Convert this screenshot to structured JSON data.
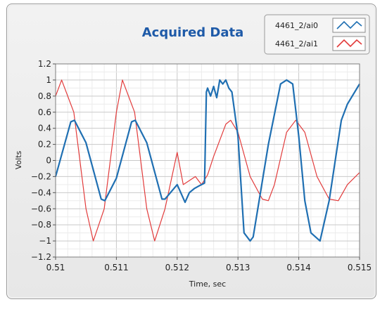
{
  "chart_data": {
    "type": "line",
    "title": "Acquired Data",
    "xlabel": "Time, sec",
    "ylabel": "Volts",
    "xlim": [
      0.51,
      0.515
    ],
    "ylim": [
      -1.2,
      1.2
    ],
    "x_ticks": [
      "0.51",
      "0.511",
      "0.512",
      "0.513",
      "0.514",
      "0.515"
    ],
    "y_ticks": [
      "1.2",
      "1",
      "0.8",
      "0.6",
      "0.4",
      "0.2",
      "0",
      "-0.2",
      "-0.4",
      "-0.6",
      "-0.8",
      "-1",
      "-1.2"
    ],
    "grid": true,
    "legend_position": "top-right",
    "series": [
      {
        "name": "4461_2/ai0",
        "color": "#1f6fb2",
        "x": [
          0.51,
          0.51025,
          0.51031,
          0.5105,
          0.51075,
          0.51081,
          0.511,
          0.51125,
          0.51131,
          0.5115,
          0.51175,
          0.5118,
          0.512,
          0.51213,
          0.5122,
          0.51228,
          0.51235,
          0.5124,
          0.51245,
          0.51248,
          0.5125,
          0.51255,
          0.5126,
          0.51265,
          0.5127,
          0.51275,
          0.5128,
          0.51285,
          0.5129,
          0.513,
          0.5131,
          0.5132,
          0.51325,
          0.5135,
          0.5137,
          0.5138,
          0.5139,
          0.514,
          0.5141,
          0.5142,
          0.51435,
          0.5145,
          0.5147,
          0.5148,
          0.515
        ],
        "y": [
          -0.2,
          0.48,
          0.5,
          0.22,
          -0.48,
          -0.5,
          -0.22,
          0.48,
          0.5,
          0.22,
          -0.48,
          -0.48,
          -0.3,
          -0.52,
          -0.4,
          -0.35,
          -0.32,
          -0.3,
          -0.28,
          0.85,
          0.9,
          0.8,
          0.92,
          0.78,
          1.0,
          0.95,
          1.0,
          0.9,
          0.85,
          0.3,
          -0.9,
          -1.0,
          -0.95,
          0.2,
          0.95,
          1.0,
          0.95,
          0.3,
          -0.5,
          -0.9,
          -1.0,
          -0.5,
          0.5,
          0.7,
          0.95
        ]
      },
      {
        "name": "4461_2/ai1",
        "color": "#e23b3b",
        "x": [
          0.51,
          0.5101,
          0.5103,
          0.5105,
          0.51062,
          0.5108,
          0.511,
          0.5111,
          0.5113,
          0.5115,
          0.51163,
          0.5118,
          0.512,
          0.5121,
          0.5122,
          0.5123,
          0.5124,
          0.5125,
          0.5126,
          0.5128,
          0.51288,
          0.513,
          0.5132,
          0.5134,
          0.5135,
          0.5136,
          0.5138,
          0.51395,
          0.5141,
          0.5143,
          0.5145,
          0.51465,
          0.5148,
          0.515
        ],
        "y": [
          0.8,
          1.0,
          0.6,
          -0.6,
          -1.0,
          -0.6,
          0.6,
          1.0,
          0.6,
          -0.6,
          -1.0,
          -0.6,
          0.1,
          -0.3,
          -0.25,
          -0.2,
          -0.3,
          -0.18,
          0.05,
          0.45,
          0.5,
          0.35,
          -0.2,
          -0.48,
          -0.5,
          -0.3,
          0.35,
          0.5,
          0.35,
          -0.2,
          -0.48,
          -0.5,
          -0.3,
          -0.15
        ]
      }
    ]
  }
}
